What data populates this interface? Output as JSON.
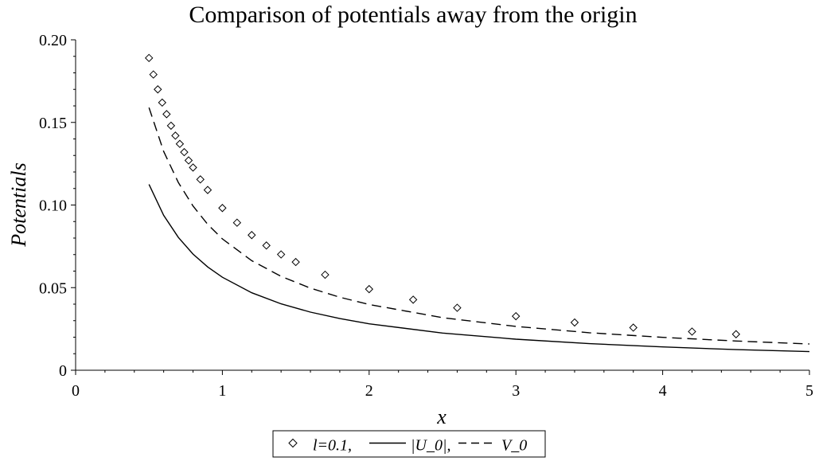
{
  "chart_data": {
    "type": "line",
    "title": "Comparison of potentials away from the origin",
    "xlabel": "x",
    "ylabel": "Potentials",
    "xlim": [
      0,
      5
    ],
    "ylim": [
      0,
      0.2
    ],
    "x_ticks": [
      {
        "value": 0,
        "label": "0"
      },
      {
        "value": 1,
        "label": "1"
      },
      {
        "value": 2,
        "label": "2"
      },
      {
        "value": 3,
        "label": "3"
      },
      {
        "value": 4,
        "label": "4"
      },
      {
        "value": 5,
        "label": "5"
      }
    ],
    "y_ticks": [
      {
        "value": 0,
        "label": "0"
      },
      {
        "value": 0.05,
        "label": "0.05"
      },
      {
        "value": 0.1,
        "label": "0.10"
      },
      {
        "value": 0.15,
        "label": "0.15"
      },
      {
        "value": 0.2,
        "label": "0.20"
      }
    ],
    "grid": false,
    "legend_position": "bottom-center",
    "series": [
      {
        "name": "l=0.1,",
        "style": "diamond-markers",
        "x": [
          0.5,
          0.53,
          0.56,
          0.59,
          0.62,
          0.65,
          0.68,
          0.71,
          0.74,
          0.77,
          0.8,
          0.85,
          0.9,
          1.0,
          1.1,
          1.2,
          1.3,
          1.4,
          1.5,
          1.7,
          2.0,
          2.3,
          2.6,
          3.0,
          3.4,
          3.8,
          4.2,
          4.5
        ],
        "y": [
          0.189,
          0.179,
          0.17,
          0.162,
          0.155,
          0.148,
          0.142,
          0.137,
          0.132,
          0.127,
          0.1227,
          0.1155,
          0.1091,
          0.0982,
          0.0893,
          0.0818,
          0.0755,
          0.0701,
          0.0655,
          0.0578,
          0.0491,
          0.0427,
          0.0378,
          0.0327,
          0.0289,
          0.0258,
          0.0234,
          0.0218
        ]
      },
      {
        "name": "|U_0|,",
        "style": "solid",
        "x": [
          0.5,
          0.6,
          0.7,
          0.8,
          0.9,
          1.0,
          1.2,
          1.4,
          1.6,
          1.8,
          2.0,
          2.5,
          3.0,
          3.5,
          4.0,
          4.5,
          5.0
        ],
        "y": [
          0.1125,
          0.0938,
          0.0804,
          0.0703,
          0.0625,
          0.0563,
          0.0469,
          0.0402,
          0.0352,
          0.0313,
          0.0281,
          0.0225,
          0.0188,
          0.0161,
          0.0141,
          0.0125,
          0.0113
        ]
      },
      {
        "name": "V_0",
        "style": "dashed",
        "x": [
          0.5,
          0.6,
          0.7,
          0.8,
          0.9,
          1.0,
          1.2,
          1.4,
          1.6,
          1.8,
          2.0,
          2.5,
          3.0,
          3.5,
          4.0,
          4.5,
          5.0
        ],
        "y": [
          0.159,
          0.1325,
          0.1136,
          0.0994,
          0.0883,
          0.0795,
          0.0663,
          0.0568,
          0.0497,
          0.0442,
          0.0398,
          0.0318,
          0.0265,
          0.0227,
          0.0199,
          0.0177,
          0.0159
        ]
      }
    ]
  }
}
